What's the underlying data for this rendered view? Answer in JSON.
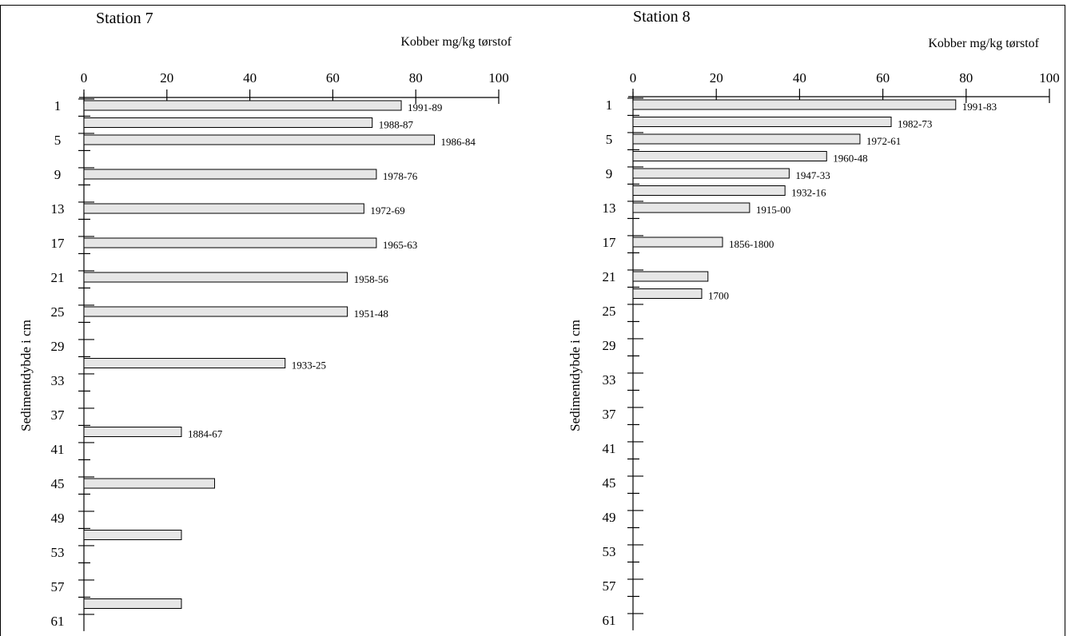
{
  "caption": "",
  "chart_data": [
    {
      "type": "bar",
      "orientation": "horizontal",
      "title": "Station 7",
      "xlabel": "Kobber mg/kg tørstof",
      "ylabel": "Sedimentdybde i cm",
      "xlim": [
        0,
        100
      ],
      "xticks": [
        0,
        20,
        40,
        60,
        80,
        100
      ],
      "ylim": [
        0,
        62
      ],
      "yticks": [
        1,
        5,
        9,
        13,
        17,
        21,
        25,
        29,
        33,
        37,
        41,
        45,
        49,
        53,
        57,
        61
      ],
      "grid": false,
      "bars": [
        {
          "depth": 1,
          "value": 76.5,
          "label": "1991-89"
        },
        {
          "depth": 3,
          "value": 69.5,
          "label": "1988-87"
        },
        {
          "depth": 5,
          "value": 84.5,
          "label": "1986-84"
        },
        {
          "depth": 9,
          "value": 70.5,
          "label": "1978-76"
        },
        {
          "depth": 13,
          "value": 67.5,
          "label": "1972-69"
        },
        {
          "depth": 17,
          "value": 70.5,
          "label": "1965-63"
        },
        {
          "depth": 21,
          "value": 63.5,
          "label": "1958-56"
        },
        {
          "depth": 25,
          "value": 63.5,
          "label": "1951-48"
        },
        {
          "depth": 31,
          "value": 48.5,
          "label": "1933-25"
        },
        {
          "depth": 39,
          "value": 23.5,
          "label": "1884-67"
        },
        {
          "depth": 45,
          "value": 31.5,
          "label": ""
        },
        {
          "depth": 51,
          "value": 23.5,
          "label": ""
        },
        {
          "depth": 59,
          "value": 23.5,
          "label": ""
        }
      ]
    },
    {
      "type": "bar",
      "orientation": "horizontal",
      "title": "Station 8",
      "xlabel": "Kobber mg/kg tørstof",
      "ylabel": "Sedimentdybde i cm",
      "xlim": [
        0,
        100
      ],
      "xticks": [
        0,
        20,
        40,
        60,
        80,
        100
      ],
      "ylim": [
        0,
        62
      ],
      "yticks": [
        1,
        5,
        9,
        13,
        17,
        21,
        25,
        29,
        33,
        37,
        41,
        45,
        49,
        53,
        57,
        61
      ],
      "grid": false,
      "bars": [
        {
          "depth": 1,
          "value": 77.5,
          "label": "1991-83"
        },
        {
          "depth": 3,
          "value": 62,
          "label": "1982-73"
        },
        {
          "depth": 5,
          "value": 54.5,
          "label": "1972-61"
        },
        {
          "depth": 7,
          "value": 46.5,
          "label": "1960-48"
        },
        {
          "depth": 9,
          "value": 37.5,
          "label": "1947-33"
        },
        {
          "depth": 11,
          "value": 36.5,
          "label": "1932-16"
        },
        {
          "depth": 13,
          "value": 28,
          "label": "1915-00"
        },
        {
          "depth": 17,
          "value": 21.5,
          "label": "1856-1800"
        },
        {
          "depth": 21,
          "value": 18,
          "label": ""
        },
        {
          "depth": 23,
          "value": 16.5,
          "label": "1700"
        }
      ]
    }
  ],
  "colors": {
    "bar_fill": "#e6e6e6",
    "bar_stroke": "#000000",
    "axis": "#000000"
  }
}
